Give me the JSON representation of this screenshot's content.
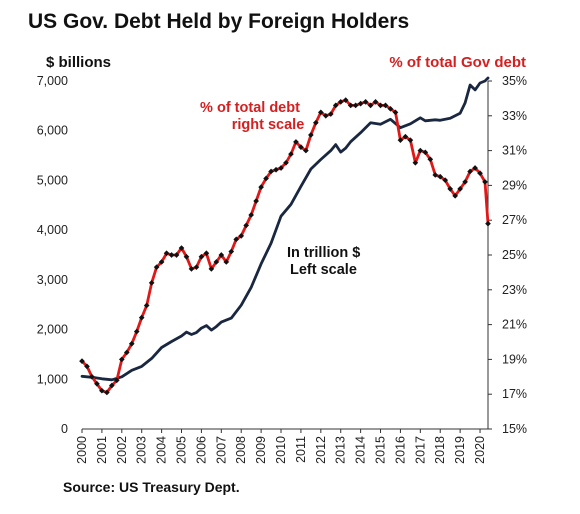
{
  "chart_data": {
    "type": "line",
    "title": "US Gov. Debt Held by Foreign Holders",
    "left_axis_label": "$ billions",
    "right_axis_label": "% of total Gov debt",
    "source": "Source: US Treasury Dept.",
    "x_ticks": [
      "2000",
      "2001",
      "2002",
      "2003",
      "2004",
      "2005",
      "2006",
      "2007",
      "2008",
      "2009",
      "2010",
      "2011",
      "2012",
      "2013",
      "2014",
      "2015",
      "2016",
      "2017",
      "2018",
      "2019",
      "2020"
    ],
    "x_range": [
      2000,
      2020.4
    ],
    "left_axis": {
      "ylim": [
        0,
        7000
      ],
      "ticks": [
        "0",
        "1,000",
        "2,000",
        "3,000",
        "4,000",
        "5,000",
        "6,000",
        "7,000"
      ]
    },
    "right_axis": {
      "ylim": [
        15,
        35
      ],
      "ticks": [
        "15%",
        "17%",
        "19%",
        "21%",
        "23%",
        "25%",
        "27%",
        "29%",
        "31%",
        "33%",
        "35%"
      ]
    },
    "grid": false,
    "annotations": [
      {
        "text": [
          "% of total debt",
          "right scale"
        ],
        "color": "#d42020"
      },
      {
        "text": [
          "In trillion $",
          "Left scale"
        ],
        "color": "#111111"
      }
    ],
    "series": [
      {
        "axis": "left",
        "color": "#1a2740",
        "x": [
          2000,
          2000.5,
          2001,
          2001.5,
          2002,
          2002.5,
          2003,
          2003.5,
          2004,
          2004.5,
          2005,
          2005.25,
          2005.5,
          2005.75,
          2006,
          2006.25,
          2006.5,
          2006.75,
          2007,
          2007.5,
          2008,
          2008.5,
          2009,
          2009.5,
          2010,
          2010.5,
          2011,
          2011.5,
          2012,
          2012.5,
          2012.75,
          2013,
          2013.25,
          2013.5,
          2014,
          2014.5,
          2015,
          2015.5,
          2016,
          2016.5,
          2017,
          2017.25,
          2017.5,
          2017.75,
          2018,
          2018.5,
          2019,
          2019.25,
          2019.5,
          2019.75,
          2020,
          2020.25,
          2020.4
        ],
        "values": [
          1060,
          1040,
          1010,
          990,
          1050,
          1180,
          1260,
          1420,
          1640,
          1760,
          1870,
          1950,
          1900,
          1940,
          2030,
          2080,
          1990,
          2060,
          2150,
          2230,
          2490,
          2850,
          3320,
          3740,
          4280,
          4520,
          4880,
          5230,
          5420,
          5600,
          5720,
          5570,
          5650,
          5780,
          5960,
          6160,
          6130,
          6230,
          6060,
          6140,
          6260,
          6200,
          6210,
          6220,
          6210,
          6250,
          6350,
          6560,
          6920,
          6820,
          6960,
          7000,
          7060
        ]
      },
      {
        "axis": "right",
        "color": "#e01818",
        "x": [
          2000,
          2000.25,
          2000.5,
          2000.75,
          2001,
          2001.25,
          2001.5,
          2001.75,
          2002,
          2002.25,
          2002.5,
          2002.75,
          2003,
          2003.25,
          2003.5,
          2003.75,
          2004,
          2004.25,
          2004.5,
          2004.75,
          2005,
          2005.25,
          2005.5,
          2005.75,
          2006,
          2006.25,
          2006.5,
          2006.75,
          2007,
          2007.25,
          2007.5,
          2007.75,
          2008,
          2008.25,
          2008.5,
          2008.75,
          2009,
          2009.25,
          2009.5,
          2009.75,
          2010,
          2010.25,
          2010.5,
          2010.75,
          2011,
          2011.25,
          2011.5,
          2011.75,
          2012,
          2012.25,
          2012.5,
          2012.75,
          2013,
          2013.25,
          2013.5,
          2013.75,
          2014,
          2014.25,
          2014.5,
          2014.75,
          2015,
          2015.25,
          2015.5,
          2015.75,
          2016,
          2016.25,
          2016.5,
          2016.75,
          2017,
          2017.25,
          2017.5,
          2017.75,
          2018,
          2018.25,
          2018.5,
          2018.75,
          2019,
          2019.25,
          2019.5,
          2019.75,
          2020,
          2020.25,
          2020.4
        ],
        "values": [
          18.9,
          18.6,
          18.0,
          17.6,
          17.2,
          17.1,
          17.5,
          17.8,
          19.0,
          19.4,
          19.9,
          20.6,
          21.4,
          22.1,
          23.4,
          24.3,
          24.6,
          25.1,
          25.0,
          25.0,
          25.4,
          24.9,
          24.2,
          24.3,
          24.9,
          25.1,
          24.2,
          24.6,
          25.0,
          24.6,
          25.2,
          25.9,
          26.1,
          26.7,
          27.3,
          28.1,
          28.9,
          29.4,
          29.8,
          29.9,
          30.0,
          30.3,
          30.8,
          31.5,
          31.2,
          31.0,
          31.9,
          32.6,
          33.2,
          33.0,
          33.1,
          33.6,
          33.8,
          33.9,
          33.6,
          33.6,
          33.7,
          33.8,
          33.6,
          33.8,
          33.6,
          33.6,
          33.4,
          33.2,
          31.6,
          31.8,
          31.6,
          30.3,
          31.0,
          30.9,
          30.5,
          29.6,
          29.5,
          29.3,
          28.8,
          28.4,
          28.8,
          29.2,
          29.8,
          30.0,
          29.7,
          29.2,
          26.8
        ]
      }
    ]
  }
}
